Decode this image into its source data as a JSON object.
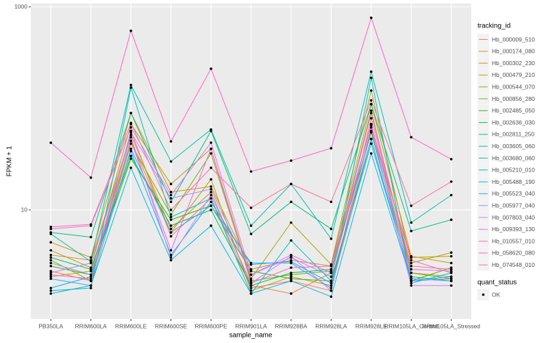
{
  "chart_data": {
    "type": "line",
    "y_label": "FPKM + 1",
    "x_label": "sample_name",
    "legend_title": "tracking_id",
    "legend2_title": "quant_status",
    "legend2_entries": [
      "OK"
    ],
    "log_y": true,
    "grid": true,
    "legend": "right",
    "categories": [
      "PB350LA",
      "RRIM600LA",
      "RRIM600LE",
      "RRIM600SE",
      "RRIM600PE",
      "RRIM901LA",
      "RRIM928BA",
      "RRIM928LA",
      "RRIM928LE",
      "RRIM105LA_Control",
      "RRIM105LA_Stressed"
    ],
    "ylim": [
      0.843,
      1081
    ],
    "yticks": [
      10,
      1000
    ],
    "series": [
      {
        "name": "Hb_000009_510",
        "color": "#F8766D",
        "values": [
          2.5,
          2.0,
          60,
          5.5,
          13,
          1.7,
          2.0,
          1.6,
          80,
          2.8,
          2.6
        ]
      },
      {
        "name": "Hb_000174_080",
        "color": "#EA8331",
        "values": [
          3.6,
          3.2,
          55,
          6.5,
          15,
          1.8,
          1.5,
          2.4,
          70,
          2.4,
          2.2
        ]
      },
      {
        "name": "Hb_000302_230",
        "color": "#D89000",
        "values": [
          4.8,
          3.4,
          90,
          15,
          17,
          2.6,
          3.2,
          2.8,
          110,
          3.5,
          3.0
        ]
      },
      {
        "name": "Hb_000479_210",
        "color": "#C09B00",
        "values": [
          2.2,
          2.5,
          48,
          6,
          20,
          1.6,
          2.2,
          1.8,
          60,
          3.4,
          3.5
        ]
      },
      {
        "name": "Hb_000544_070",
        "color": "#A3A500",
        "values": [
          4.0,
          2.7,
          70,
          18,
          40,
          2.1,
          7.5,
          2.9,
          150,
          3.0,
          3.8
        ]
      },
      {
        "name": "Hb_000856_280",
        "color": "#7CAE00",
        "values": [
          3.2,
          2.0,
          45,
          9,
          36,
          2.0,
          2.3,
          2.5,
          95,
          2.4,
          2.1
        ]
      },
      {
        "name": "Hb_002485_050",
        "color": "#39B600",
        "values": [
          2.8,
          2.3,
          32,
          8,
          11,
          2.5,
          2.1,
          2.0,
          50,
          2.0,
          2.7
        ]
      },
      {
        "name": "Hb_002636_030",
        "color": "#00BB4E",
        "values": [
          3.4,
          2.6,
          34,
          7,
          10,
          1.8,
          2.4,
          2.6,
          58,
          2.2,
          2.0
        ]
      },
      {
        "name": "Hb_002811_250",
        "color": "#00BF7D",
        "values": [
          6.0,
          5.4,
          90,
          12,
          60,
          5.8,
          12,
          6.5,
          110,
          6.2,
          8.0
        ]
      },
      {
        "name": "Hb_003605_060",
        "color": "#00C1A3",
        "values": [
          5.8,
          3.1,
          170,
          30,
          62,
          7.0,
          18,
          5.2,
          230,
          7.5,
          14
        ]
      },
      {
        "name": "Hb_003680_060",
        "color": "#00BFC4",
        "values": [
          1.6,
          1.7,
          160,
          8.5,
          13,
          1.5,
          5.0,
          2.0,
          200,
          1.9,
          2.4
        ]
      },
      {
        "name": "Hb_005210_010",
        "color": "#00BAE0",
        "values": [
          1.5,
          1.8,
          26,
          3.2,
          7,
          1.5,
          2.0,
          1.4,
          36,
          2.0,
          2.2
        ]
      },
      {
        "name": "Hb_005488_190",
        "color": "#00B0F6",
        "values": [
          1.7,
          2.2,
          38,
          3.6,
          12,
          2.9,
          3.1,
          1.9,
          45,
          2.1,
          2.0
        ]
      },
      {
        "name": "Hb_005523_040",
        "color": "#35A2FF",
        "values": [
          2.1,
          1.8,
          40,
          6,
          11,
          3.0,
          3.0,
          1.7,
          50,
          2.0,
          2.1
        ]
      },
      {
        "name": "Hb_005977_040",
        "color": "#9590FF",
        "values": [
          3.0,
          2.3,
          58,
          13,
          16,
          2.3,
          3.4,
          2.2,
          70,
          2.1,
          2.0
        ]
      },
      {
        "name": "Hb_007803_040",
        "color": "#C77CFF",
        "values": [
          2.4,
          3.0,
          52,
          3.4,
          14,
          1.9,
          3.5,
          1.6,
          65,
          1.8,
          1.8
        ]
      },
      {
        "name": "Hb_009393_130",
        "color": "#E76BF3",
        "values": [
          6.5,
          7.0,
          65,
          14,
          46,
          2.3,
          3.6,
          2.4,
          90,
          2.6,
          2.5
        ]
      },
      {
        "name": "Hb_010557_010",
        "color": "#FA62DB",
        "values": [
          2.3,
          2.1,
          48,
          4,
          40,
          1.9,
          2.7,
          2.8,
          68,
          3.2,
          2.4
        ]
      },
      {
        "name": "Hb_058620_080",
        "color": "#FF62BC",
        "values": [
          45.9,
          20.8,
          581,
          47.3,
          246,
          23.9,
          30.6,
          40.5,
          780,
          52,
          31.6
        ]
      },
      {
        "name": "Hb_074548_010",
        "color": "#FF6C91",
        "values": [
          6.8,
          7.2,
          72,
          10,
          26,
          10.5,
          18,
          12,
          120,
          11,
          19
        ]
      }
    ]
  }
}
